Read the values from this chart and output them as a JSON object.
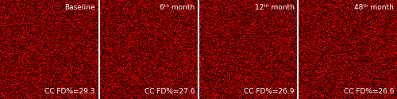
{
  "panels": [
    {
      "top_label": "Baseline",
      "bottom_label": "CC FD%=29.3",
      "top_align": "right",
      "bottom_align": "right"
    },
    {
      "top_label": "6ᵗʰ month",
      "bottom_label": "CC FD%=27.6",
      "top_align": "right",
      "bottom_align": "right"
    },
    {
      "top_label": "12ᵗʰ month",
      "bottom_label": "CC FD%=26.9",
      "top_align": "right",
      "bottom_align": "right"
    },
    {
      "top_label": "48ᵗʰ month",
      "bottom_label": "CC FD%=26.6",
      "top_align": "right",
      "bottom_align": "right"
    }
  ],
  "bg_color": "#000000",
  "divider_color": "#ffffff",
  "label_color": "#ffffff",
  "noise_base_color": [
    180,
    0,
    0
  ],
  "noise_dark_color": [
    80,
    0,
    0
  ],
  "label_fontsize": 6.5,
  "figsize": [
    5.0,
    1.25
  ],
  "dpi": 100,
  "seed": 42
}
